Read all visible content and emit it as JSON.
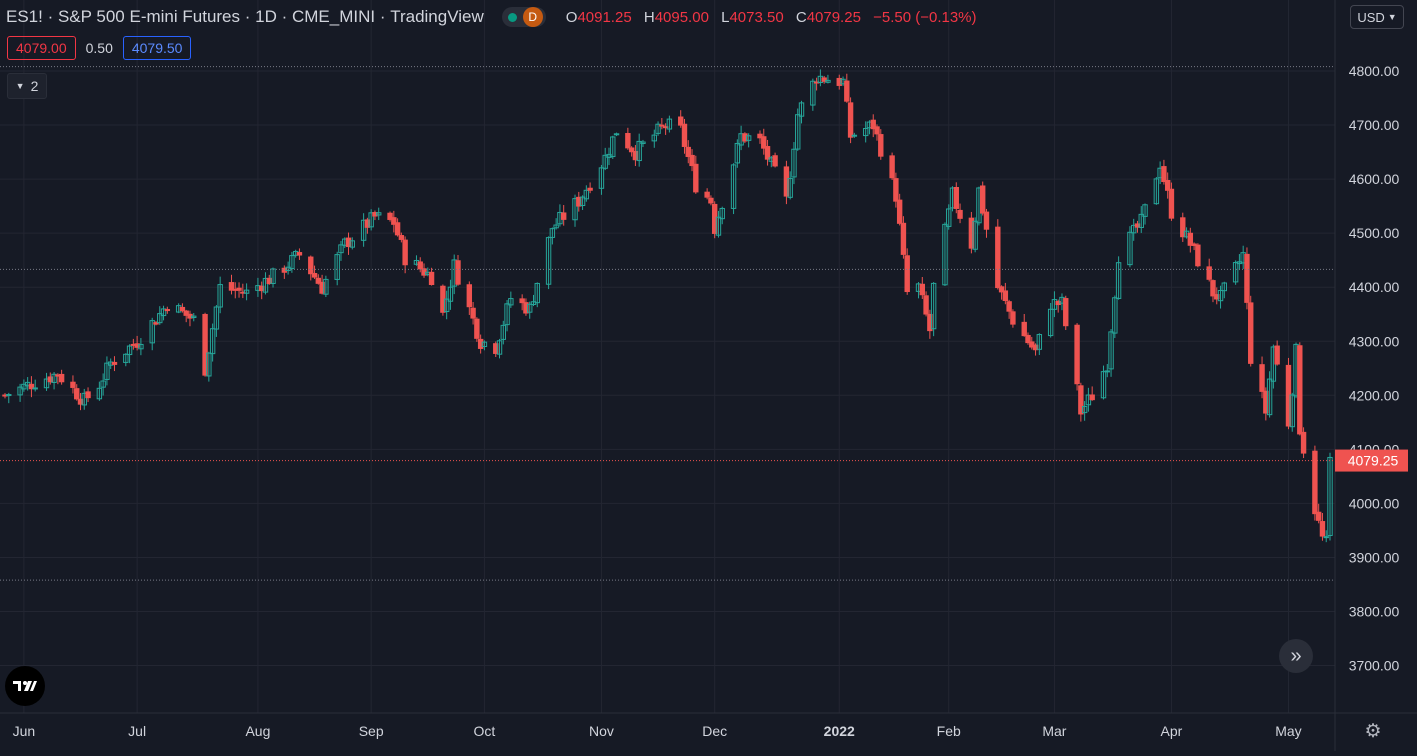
{
  "legend": {
    "symbol": "ES1!",
    "name": "S&P 500 E-mini Futures",
    "interval": "1D",
    "exchange": "CME_MINI",
    "source": "TradingView",
    "status_letter": "D",
    "status_dot_color": "#089981",
    "open_key": "O",
    "open": "4091.25",
    "high_key": "H",
    "high": "4095.00",
    "low_key": "L",
    "low": "4073.50",
    "close_key": "C",
    "close": "4079.25",
    "change": "−5.50 (−0.13%)"
  },
  "quote": {
    "bid": "4079.00",
    "spread": "0.50",
    "ask": "4079.50"
  },
  "indicators_toggle": {
    "count": "2",
    "icon": "chevron-down-icon"
  },
  "currency": {
    "label": "USD",
    "icon": "chevron-down-icon"
  },
  "last_price_label": "4079.25",
  "controls": {
    "logo": "tradingview-logo-icon",
    "scroll": "chevrons-right-icon",
    "settings": "gear-icon"
  },
  "colors": {
    "background": "#161a25",
    "grid": "#232632",
    "up": "#26a69a",
    "down": "#ef5350",
    "last_price": "#ef5350",
    "axis_text": "#d1d4dc"
  },
  "chart_data": {
    "type": "candlestick",
    "ylim": [
      3620,
      4840
    ],
    "y_ticks": [
      "3700.00",
      "3800.00",
      "3900.00",
      "4000.00",
      "4100.00",
      "4200.00",
      "4300.00",
      "4400.00",
      "4500.00",
      "4600.00",
      "4700.00",
      "4800.00"
    ],
    "x_labels": [
      "Jun",
      "Jul",
      "Aug",
      "Sep",
      "Oct",
      "Nov",
      "Dec",
      "2022",
      "Feb",
      "Mar",
      "Apr",
      "May"
    ],
    "x_label_dates": [
      "2021-06-01",
      "2021-07-01",
      "2021-08-02",
      "2021-09-01",
      "2021-10-01",
      "2021-11-01",
      "2021-12-01",
      "2022-01-03",
      "2022-02-01",
      "2022-03-01",
      "2022-04-01",
      "2022-05-02"
    ],
    "grid": true,
    "price_lines": [
      {
        "name": "upper-range-line",
        "value": 4808
      },
      {
        "name": "mid-range-line",
        "value": 4433
      },
      {
        "name": "lower-range-line",
        "value": 3858
      }
    ],
    "last_price": 4079.25,
    "first_date": "2021-05-27",
    "last_date": "2022-05-13",
    "close_path": [
      [
        "2021-05-27",
        4200
      ],
      [
        "2021-06-04",
        4225
      ],
      [
        "2021-06-10",
        4240
      ],
      [
        "2021-06-17",
        4190
      ],
      [
        "2021-06-21",
        4220
      ],
      [
        "2021-06-24",
        4260
      ],
      [
        "2021-07-01",
        4300
      ],
      [
        "2021-07-07",
        4350
      ],
      [
        "2021-07-09",
        4370
      ],
      [
        "2021-07-16",
        4340
      ],
      [
        "2021-07-19",
        4250
      ],
      [
        "2021-07-23",
        4400
      ],
      [
        "2021-07-30",
        4390
      ],
      [
        "2021-08-06",
        4420
      ],
      [
        "2021-08-13",
        4460
      ],
      [
        "2021-08-19",
        4400
      ],
      [
        "2021-08-25",
        4480
      ],
      [
        "2021-09-02",
        4530
      ],
      [
        "2021-09-07",
        4520
      ],
      [
        "2021-09-10",
        4455
      ],
      [
        "2021-09-17",
        4420
      ],
      [
        "2021-09-20",
        4350
      ],
      [
        "2021-09-23",
        4440
      ],
      [
        "2021-09-30",
        4300
      ],
      [
        "2021-10-04",
        4290
      ],
      [
        "2021-10-08",
        4380
      ],
      [
        "2021-10-13",
        4360
      ],
      [
        "2021-10-19",
        4510
      ],
      [
        "2021-10-26",
        4560
      ],
      [
        "2021-11-02",
        4640
      ],
      [
        "2021-11-05",
        4690
      ],
      [
        "2021-11-10",
        4650
      ],
      [
        "2021-11-18",
        4700
      ],
      [
        "2021-11-22",
        4690
      ],
      [
        "2021-11-26",
        4590
      ],
      [
        "2021-11-30",
        4560
      ],
      [
        "2021-12-01",
        4510
      ],
      [
        "2021-12-08",
        4680
      ],
      [
        "2021-12-13",
        4670
      ],
      [
        "2021-12-17",
        4610
      ],
      [
        "2021-12-20",
        4560
      ],
      [
        "2021-12-23",
        4720
      ],
      [
        "2021-12-28",
        4790
      ],
      [
        "2022-01-04",
        4780
      ],
      [
        "2022-01-06",
        4680
      ],
      [
        "2022-01-12",
        4700
      ],
      [
        "2022-01-18",
        4570
      ],
      [
        "2022-01-21",
        4390
      ],
      [
        "2022-01-24",
        4400
      ],
      [
        "2022-01-27",
        4320
      ],
      [
        "2022-01-28",
        4400
      ],
      [
        "2022-02-02",
        4570
      ],
      [
        "2022-02-07",
        4480
      ],
      [
        "2022-02-09",
        4580
      ],
      [
        "2022-02-14",
        4400
      ],
      [
        "2022-02-18",
        4340
      ],
      [
        "2022-02-24",
        4280
      ],
      [
        "2022-02-28",
        4370
      ],
      [
        "2022-03-03",
        4370
      ],
      [
        "2022-03-08",
        4170
      ],
      [
        "2022-03-11",
        4200
      ],
      [
        "2022-03-15",
        4260
      ],
      [
        "2022-03-18",
        4460
      ],
      [
        "2022-03-24",
        4520
      ],
      [
        "2022-03-29",
        4630
      ],
      [
        "2022-04-01",
        4540
      ],
      [
        "2022-04-06",
        4480
      ],
      [
        "2022-04-12",
        4390
      ],
      [
        "2022-04-14",
        4380
      ],
      [
        "2022-04-20",
        4460
      ],
      [
        "2022-04-22",
        4270
      ],
      [
        "2022-04-26",
        4170
      ],
      [
        "2022-04-28",
        4290
      ],
      [
        "2022-05-02",
        4150
      ],
      [
        "2022-05-04",
        4280
      ],
      [
        "2022-05-05",
        4140
      ],
      [
        "2022-05-09",
        3990
      ],
      [
        "2022-05-11",
        3935
      ],
      [
        "2022-05-12",
        3925
      ],
      [
        "2022-05-13",
        4079
      ]
    ]
  }
}
